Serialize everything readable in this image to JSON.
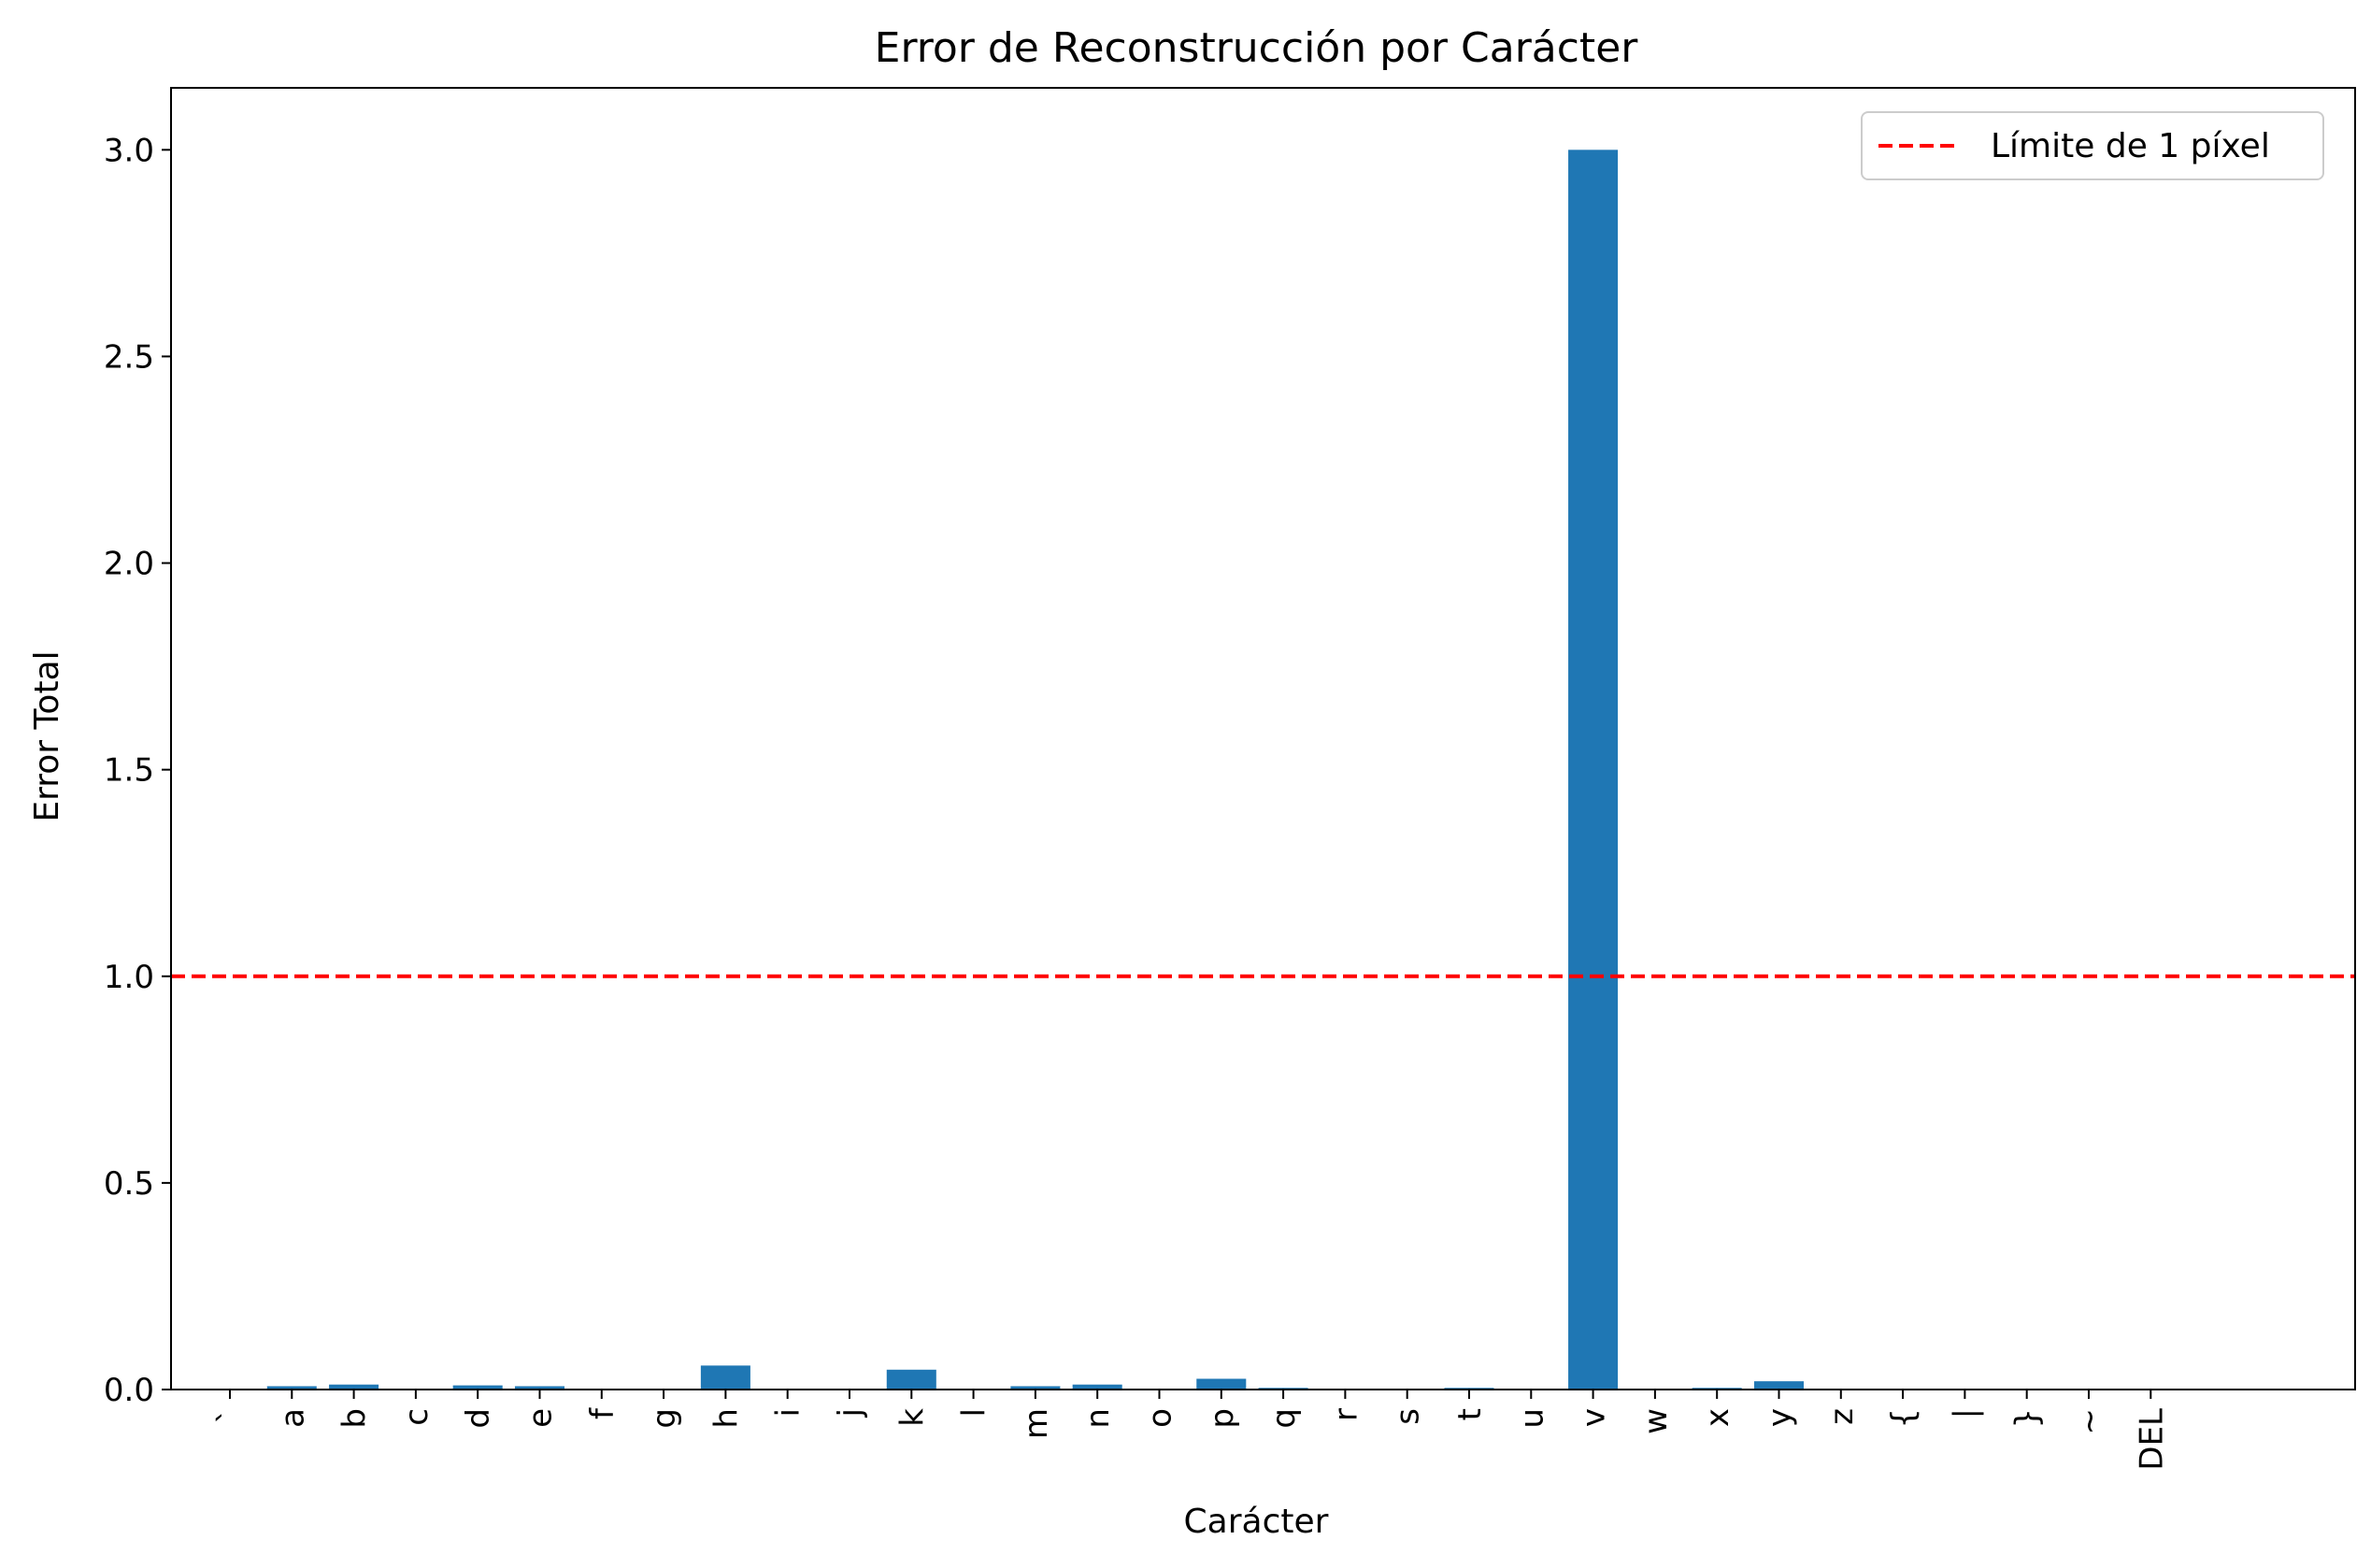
{
  "chart_data": {
    "type": "bar",
    "title": "Error de Reconstrucción por Carácter",
    "xlabel": "Carácter",
    "ylabel": "Error Total",
    "categories": [
      "`",
      "a",
      "b",
      "c",
      "d",
      "e",
      "f",
      "g",
      "h",
      "i",
      "j",
      "k",
      "l",
      "m",
      "n",
      "o",
      "p",
      "q",
      "r",
      "s",
      "t",
      "u",
      "v",
      "w",
      "x",
      "y",
      "z",
      "{",
      "|",
      "}",
      "~",
      "DEL"
    ],
    "values": [
      0.0,
      0.008,
      0.012,
      0.0,
      0.01,
      0.008,
      0.0,
      0.0,
      0.058,
      0.0,
      0.0,
      0.048,
      0.0,
      0.008,
      0.012,
      0.0,
      0.026,
      0.004,
      0.0,
      0.0,
      0.004,
      0.0,
      3.0,
      0.0,
      0.004,
      0.02,
      0.0,
      0.0,
      0.0,
      0.0,
      0.0,
      0.0
    ],
    "ylim": [
      0,
      3.15
    ],
    "yticks": [
      "0.0",
      "0.5",
      "1.0",
      "1.5",
      "2.0",
      "2.5",
      "3.0"
    ],
    "threshold": {
      "value": 1.0,
      "label": "Límite de 1 píxel",
      "color": "#ff0000"
    },
    "bar_color": "#1f77b4",
    "legend": {
      "position": "top-right",
      "entries": [
        "Límite de 1 píxel"
      ]
    },
    "grid": false
  }
}
